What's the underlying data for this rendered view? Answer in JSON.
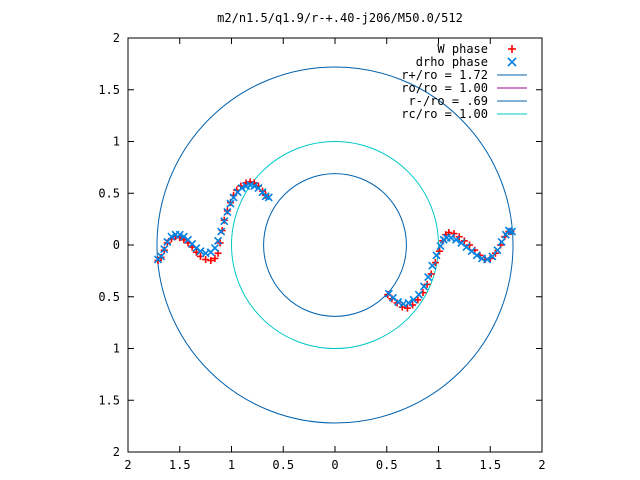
{
  "chart_data": {
    "type": "scatter",
    "title": "m2/n1.5/q1.9/r-+.40-j206/M50.0/512",
    "xlabel": "",
    "ylabel": "",
    "xlim": [
      -2,
      2
    ],
    "ylim": [
      -2,
      2
    ],
    "grid": false,
    "legend_position": "top-right",
    "x_ticks": [
      {
        "value": -2,
        "label": "2"
      },
      {
        "value": -1.5,
        "label": "1.5"
      },
      {
        "value": -1,
        "label": "1"
      },
      {
        "value": -0.5,
        "label": "0.5"
      },
      {
        "value": 0,
        "label": "0"
      },
      {
        "value": 0.5,
        "label": "0.5"
      },
      {
        "value": 1,
        "label": "1"
      },
      {
        "value": 1.5,
        "label": "1.5"
      },
      {
        "value": 2,
        "label": "2"
      }
    ],
    "y_ticks": [
      {
        "value": 2,
        "label": "2"
      },
      {
        "value": 1.5,
        "label": "1.5"
      },
      {
        "value": 1,
        "label": "1"
      },
      {
        "value": 0.5,
        "label": "0.5"
      },
      {
        "value": 0,
        "label": "0"
      },
      {
        "value": -0.5,
        "label": "0.5"
      },
      {
        "value": -1,
        "label": "1"
      },
      {
        "value": -1.5,
        "label": "1.5"
      },
      {
        "value": -2,
        "label": "2"
      }
    ],
    "series": [
      {
        "name": "W phase",
        "kind": "points",
        "marker": "plus",
        "color": "#ff0000",
        "points": [
          [
            -1.71,
            -0.15
          ],
          [
            -1.68,
            -0.12
          ],
          [
            -1.65,
            -0.05
          ],
          [
            -1.62,
            0.02
          ],
          [
            -1.58,
            0.06
          ],
          [
            -1.54,
            0.08
          ],
          [
            -1.5,
            0.07
          ],
          [
            -1.46,
            0.05
          ],
          [
            -1.42,
            0.02
          ],
          [
            -1.38,
            -0.02
          ],
          [
            -1.34,
            -0.07
          ],
          [
            -1.3,
            -0.11
          ],
          [
            -1.25,
            -0.14
          ],
          [
            -1.2,
            -0.15
          ],
          [
            -1.16,
            -0.13
          ],
          [
            -1.13,
            -0.08
          ],
          [
            -1.11,
            0.02
          ],
          [
            -1.09,
            0.14
          ],
          [
            -1.07,
            0.24
          ],
          [
            -1.04,
            0.33
          ],
          [
            -1.01,
            0.41
          ],
          [
            -0.98,
            0.48
          ],
          [
            -0.95,
            0.53
          ],
          [
            -0.91,
            0.57
          ],
          [
            -0.86,
            0.6
          ],
          [
            -0.82,
            0.61
          ],
          [
            -0.78,
            0.6
          ],
          [
            -0.74,
            0.57
          ],
          [
            -0.7,
            0.52
          ],
          [
            -0.67,
            0.48
          ],
          [
            0.51,
            -0.48
          ],
          [
            0.55,
            -0.52
          ],
          [
            0.6,
            -0.56
          ],
          [
            0.65,
            -0.6
          ],
          [
            0.7,
            -0.61
          ],
          [
            0.75,
            -0.58
          ],
          [
            0.8,
            -0.53
          ],
          [
            0.85,
            -0.46
          ],
          [
            0.89,
            -0.38
          ],
          [
            0.93,
            -0.28
          ],
          [
            0.97,
            -0.17
          ],
          [
            1.01,
            -0.06
          ],
          [
            1.04,
            0.04
          ],
          [
            1.07,
            0.1
          ],
          [
            1.1,
            0.12
          ],
          [
            1.15,
            0.11
          ],
          [
            1.2,
            0.08
          ],
          [
            1.25,
            0.04
          ],
          [
            1.3,
            0.0
          ],
          [
            1.35,
            -0.05
          ],
          [
            1.4,
            -0.1
          ],
          [
            1.45,
            -0.14
          ],
          [
            1.5,
            -0.13
          ],
          [
            1.55,
            -0.08
          ],
          [
            1.6,
            0.0
          ],
          [
            1.64,
            0.08
          ],
          [
            1.68,
            0.13
          ],
          [
            1.7,
            0.13
          ]
        ]
      },
      {
        "name": "drho phase",
        "kind": "points",
        "marker": "cross",
        "color": "#0080e0",
        "points": [
          [
            -1.71,
            -0.14
          ],
          [
            -1.68,
            -0.11
          ],
          [
            -1.65,
            -0.04
          ],
          [
            -1.62,
            0.03
          ],
          [
            -1.58,
            0.08
          ],
          [
            -1.54,
            0.1
          ],
          [
            -1.5,
            0.1
          ],
          [
            -1.46,
            0.08
          ],
          [
            -1.42,
            0.05
          ],
          [
            -1.38,
            0.01
          ],
          [
            -1.34,
            -0.03
          ],
          [
            -1.3,
            -0.06
          ],
          [
            -1.25,
            -0.08
          ],
          [
            -1.2,
            -0.07
          ],
          [
            -1.16,
            -0.03
          ],
          [
            -1.13,
            0.04
          ],
          [
            -1.1,
            0.13
          ],
          [
            -1.07,
            0.23
          ],
          [
            -1.04,
            0.32
          ],
          [
            -1.01,
            0.4
          ],
          [
            -0.98,
            0.46
          ],
          [
            -0.94,
            0.51
          ],
          [
            -0.9,
            0.55
          ],
          [
            -0.86,
            0.57
          ],
          [
            -0.82,
            0.58
          ],
          [
            -0.78,
            0.57
          ],
          [
            -0.74,
            0.55
          ],
          [
            -0.7,
            0.51
          ],
          [
            -0.67,
            0.47
          ],
          [
            -0.64,
            0.46
          ],
          [
            0.52,
            -0.47
          ],
          [
            0.56,
            -0.51
          ],
          [
            0.61,
            -0.55
          ],
          [
            0.66,
            -0.57
          ],
          [
            0.71,
            -0.56
          ],
          [
            0.76,
            -0.53
          ],
          [
            0.81,
            -0.48
          ],
          [
            0.86,
            -0.4
          ],
          [
            0.9,
            -0.31
          ],
          [
            0.94,
            -0.2
          ],
          [
            0.98,
            -0.1
          ],
          [
            1.02,
            -0.01
          ],
          [
            1.05,
            0.05
          ],
          [
            1.08,
            0.07
          ],
          [
            1.12,
            0.07
          ],
          [
            1.17,
            0.05
          ],
          [
            1.22,
            0.02
          ],
          [
            1.27,
            -0.02
          ],
          [
            1.32,
            -0.06
          ],
          [
            1.37,
            -0.1
          ],
          [
            1.42,
            -0.13
          ],
          [
            1.47,
            -0.14
          ],
          [
            1.52,
            -0.11
          ],
          [
            1.57,
            -0.05
          ],
          [
            1.61,
            0.03
          ],
          [
            1.65,
            0.1
          ],
          [
            1.68,
            0.14
          ],
          [
            1.71,
            0.13
          ]
        ]
      },
      {
        "name": "r+/ro = 1.72",
        "kind": "circle",
        "radius": 1.72,
        "color": "#0060ad"
      },
      {
        "name": "ro/ro = 1.00",
        "kind": "circle",
        "radius": 1.0,
        "color": "#a0008c",
        "draw": false
      },
      {
        "name": "r-/ro = .69",
        "kind": "circle",
        "radius": 0.69,
        "color": "#0060ad"
      },
      {
        "name": "rc/ro = 1.00",
        "kind": "circle",
        "radius": 1.0,
        "color": "#00c8c8"
      }
    ]
  }
}
